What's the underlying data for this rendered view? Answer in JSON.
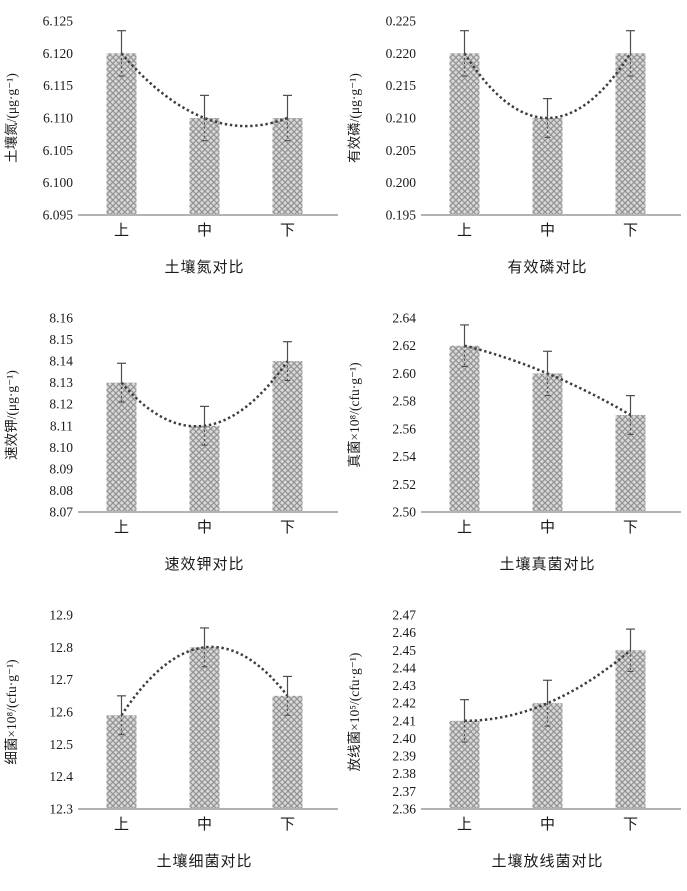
{
  "page": {
    "background": "#ffffff"
  },
  "colors": {
    "bar_base": "#d9d9d9",
    "bar_hatch": "#8b8b8b",
    "error_bar": "#4d4d4d",
    "trendline": "#3d3d3d",
    "baseline": "#b3b3b3",
    "text": "#1a1a1a"
  },
  "chart_data": [
    {
      "type": "bar",
      "name": "soil-nitrogen",
      "title": "土壤氮对比",
      "xlabel": "",
      "ylabel": "土壤氮/(μg·g⁻¹)",
      "categories": [
        "上",
        "中",
        "下"
      ],
      "values": [
        6.12,
        6.11,
        6.11
      ],
      "errors": [
        0.0035,
        0.0035,
        0.0035
      ],
      "ylim": [
        6.095,
        6.125
      ],
      "ytick_step": 0.005,
      "decimals": 3,
      "trendline": "quadratic-dotted",
      "grid": false,
      "legend": false
    },
    {
      "type": "bar",
      "name": "available-phosphorus",
      "title": "有效磷对比",
      "xlabel": "",
      "ylabel": "有效磷/(μg·g⁻¹)",
      "categories": [
        "上",
        "中",
        "下"
      ],
      "values": [
        0.22,
        0.21,
        0.22
      ],
      "errors": [
        0.0035,
        0.003,
        0.0035
      ],
      "ylim": [
        0.195,
        0.225
      ],
      "ytick_step": 0.005,
      "decimals": 3,
      "trendline": "quadratic-dotted",
      "grid": false,
      "legend": false
    },
    {
      "type": "bar",
      "name": "available-potassium",
      "title": "速效钾对比",
      "xlabel": "",
      "ylabel": "速效钾/(μg·g⁻¹)",
      "categories": [
        "上",
        "中",
        "下"
      ],
      "values": [
        8.13,
        8.11,
        8.14
      ],
      "errors": [
        0.009,
        0.009,
        0.009
      ],
      "ylim": [
        8.07,
        8.16
      ],
      "ytick_step": 0.01,
      "decimals": 2,
      "trendline": "quadratic-dotted",
      "grid": false,
      "legend": false
    },
    {
      "type": "bar",
      "name": "soil-fungi",
      "title": "土壤真菌对比",
      "xlabel": "",
      "ylabel": "真菌×10⁸/(cfu·g⁻¹)",
      "categories": [
        "上",
        "中",
        "下"
      ],
      "values": [
        2.62,
        2.6,
        2.57
      ],
      "errors": [
        0.015,
        0.016,
        0.014
      ],
      "ylim": [
        2.5,
        2.64
      ],
      "ytick_step": 0.02,
      "decimals": 2,
      "trendline": "quadratic-dotted",
      "grid": false,
      "legend": false
    },
    {
      "type": "bar",
      "name": "soil-bacteria",
      "title": "土壤细菌对比",
      "xlabel": "",
      "ylabel": "细菌×10⁸/(cfu·g⁻¹)",
      "categories": [
        "上",
        "中",
        "下"
      ],
      "values": [
        12.59,
        12.8,
        12.65
      ],
      "errors": [
        0.06,
        0.06,
        0.06
      ],
      "ylim": [
        12.3,
        12.9
      ],
      "ytick_step": 0.1,
      "decimals": 1,
      "trendline": "quadratic-dotted",
      "grid": false,
      "legend": false
    },
    {
      "type": "bar",
      "name": "soil-actinomycetes",
      "title": "土壤放线菌对比",
      "xlabel": "",
      "ylabel": "放线菌×10⁵/(cfu·g⁻¹)",
      "categories": [
        "上",
        "中",
        "下"
      ],
      "values": [
        2.41,
        2.42,
        2.45
      ],
      "errors": [
        0.012,
        0.013,
        0.012
      ],
      "ylim": [
        2.36,
        2.47
      ],
      "ytick_step": 0.01,
      "decimals": 2,
      "trendline": "quadratic-dotted",
      "grid": false,
      "legend": false
    }
  ]
}
